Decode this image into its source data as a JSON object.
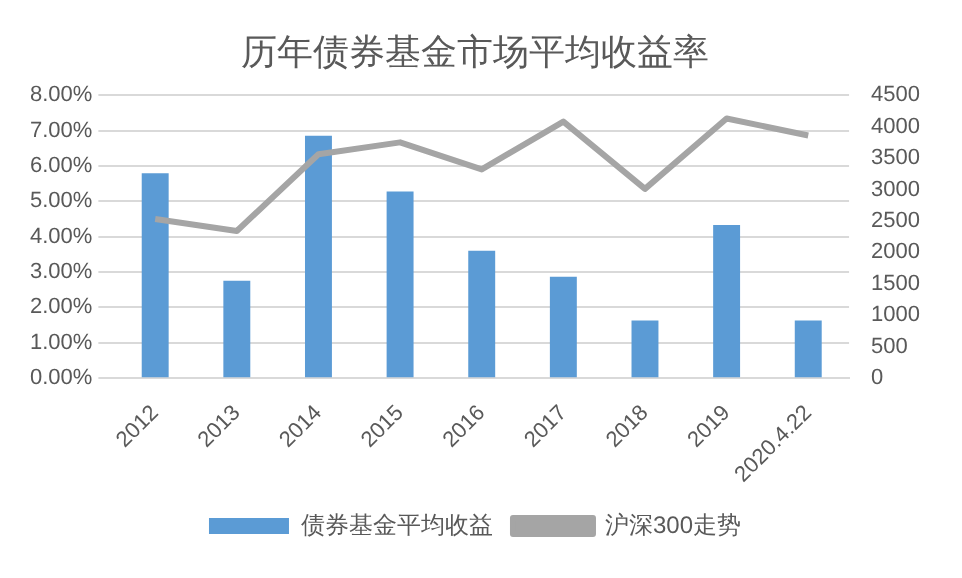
{
  "chart_data": {
    "type": "bar",
    "title": "历年债券基金市场平均收益率",
    "categories": [
      "2012",
      "2013",
      "2014",
      "2015",
      "2016",
      "2017",
      "2018",
      "2019",
      "2020.4.22"
    ],
    "series": [
      {
        "name": "债券基金平均收益",
        "color": "#5b9bd5",
        "values": [
          5.79,
          2.75,
          6.85,
          5.28,
          3.6,
          2.87,
          1.63,
          4.33,
          1.63
        ]
      },
      {
        "name": "沪深300走势",
        "type": "line",
        "axis": "y2",
        "color": "#a5a5a5",
        "marker": "none",
        "values": [
          2530,
          2340,
          3560,
          3750,
          3320,
          4080,
          3010,
          4130,
          3860
        ]
      }
    ],
    "ylim": [
      0,
      8
    ],
    "yticks": [
      {
        "value": 0,
        "label": "0.00%"
      },
      {
        "value": 1,
        "label": "1.00%"
      },
      {
        "value": 2,
        "label": "2.00%"
      },
      {
        "value": 3,
        "label": "3.00%"
      },
      {
        "value": 4,
        "label": "4.00%"
      },
      {
        "value": 5,
        "label": "5.00%"
      },
      {
        "value": 6,
        "label": "6.00%"
      },
      {
        "value": 7,
        "label": "7.00%"
      },
      {
        "value": 8,
        "label": "8.00%"
      }
    ],
    "y2lim": [
      0,
      4500
    ],
    "y2ticks": [
      0,
      500,
      1000,
      1500,
      2000,
      2500,
      3000,
      3500,
      4000,
      4500
    ],
    "grid": "y",
    "legend": "bottom"
  }
}
